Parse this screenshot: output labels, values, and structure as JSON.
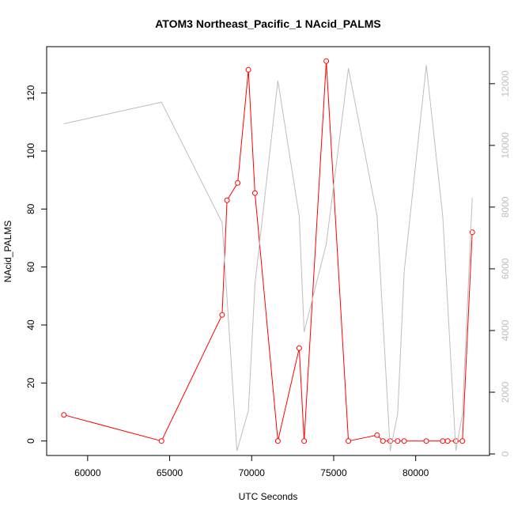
{
  "chart_data": {
    "type": "line",
    "title": "ATOM3 Northeast_Pacific_1 NAcid_PALMS",
    "xlabel": "UTC Seconds",
    "ylabel": "NAcid_PALMS",
    "xlim": [
      57500,
      84500
    ],
    "ylim": [
      -5,
      136
    ],
    "y2lim": [
      -50,
      13200
    ],
    "x_ticks": [
      60000,
      65000,
      70000,
      75000,
      80000
    ],
    "x_tick_labels": [
      "60000",
      "65000",
      "70000",
      "75000",
      "80000"
    ],
    "y_ticks": [
      0,
      20,
      40,
      60,
      80,
      100,
      120
    ],
    "y_tick_labels": [
      "0",
      "20",
      "40",
      "60",
      "80",
      "100",
      "120"
    ],
    "y2_ticks": [
      0,
      2000,
      4000,
      6000,
      8000,
      10000,
      12000
    ],
    "y2_tick_labels": [
      "0",
      "2000",
      "4000",
      "6000",
      "8000",
      "10000",
      "12000"
    ],
    "grid": false,
    "series": [
      {
        "axis": "left",
        "style": "line+circle",
        "color": "#ff0000",
        "points": [
          [
            58550,
            9
          ],
          [
            64500,
            0
          ],
          [
            68200,
            43.5
          ],
          [
            68500,
            83
          ],
          [
            69150,
            89
          ],
          [
            69800,
            128
          ],
          [
            70200,
            85.5
          ],
          [
            71600,
            0
          ],
          [
            72900,
            32
          ],
          [
            73200,
            0
          ],
          [
            74550,
            131
          ],
          [
            75900,
            0
          ],
          [
            77650,
            2
          ],
          [
            78000,
            0
          ],
          [
            78450,
            0
          ],
          [
            78900,
            0
          ],
          [
            79300,
            0
          ],
          [
            80650,
            0
          ],
          [
            81650,
            0
          ],
          [
            81950,
            0
          ],
          [
            82450,
            0
          ],
          [
            82850,
            0
          ],
          [
            83450,
            72
          ]
        ]
      },
      {
        "axis": "right",
        "style": "line",
        "color": "#bebebe",
        "points": [
          [
            58550,
            10700
          ],
          [
            64500,
            11400
          ],
          [
            68200,
            7500
          ],
          [
            69100,
            100
          ],
          [
            69800,
            1400
          ],
          [
            70200,
            5500
          ],
          [
            71600,
            12100
          ],
          [
            72900,
            7700
          ],
          [
            73200,
            3950
          ],
          [
            74550,
            6800
          ],
          [
            75900,
            12500
          ],
          [
            77650,
            7700
          ],
          [
            78450,
            100
          ],
          [
            78900,
            1300
          ],
          [
            79300,
            5900
          ],
          [
            80650,
            12600
          ],
          [
            81650,
            7700
          ],
          [
            82450,
            100
          ],
          [
            82850,
            1300
          ],
          [
            83450,
            8300
          ]
        ]
      }
    ]
  }
}
